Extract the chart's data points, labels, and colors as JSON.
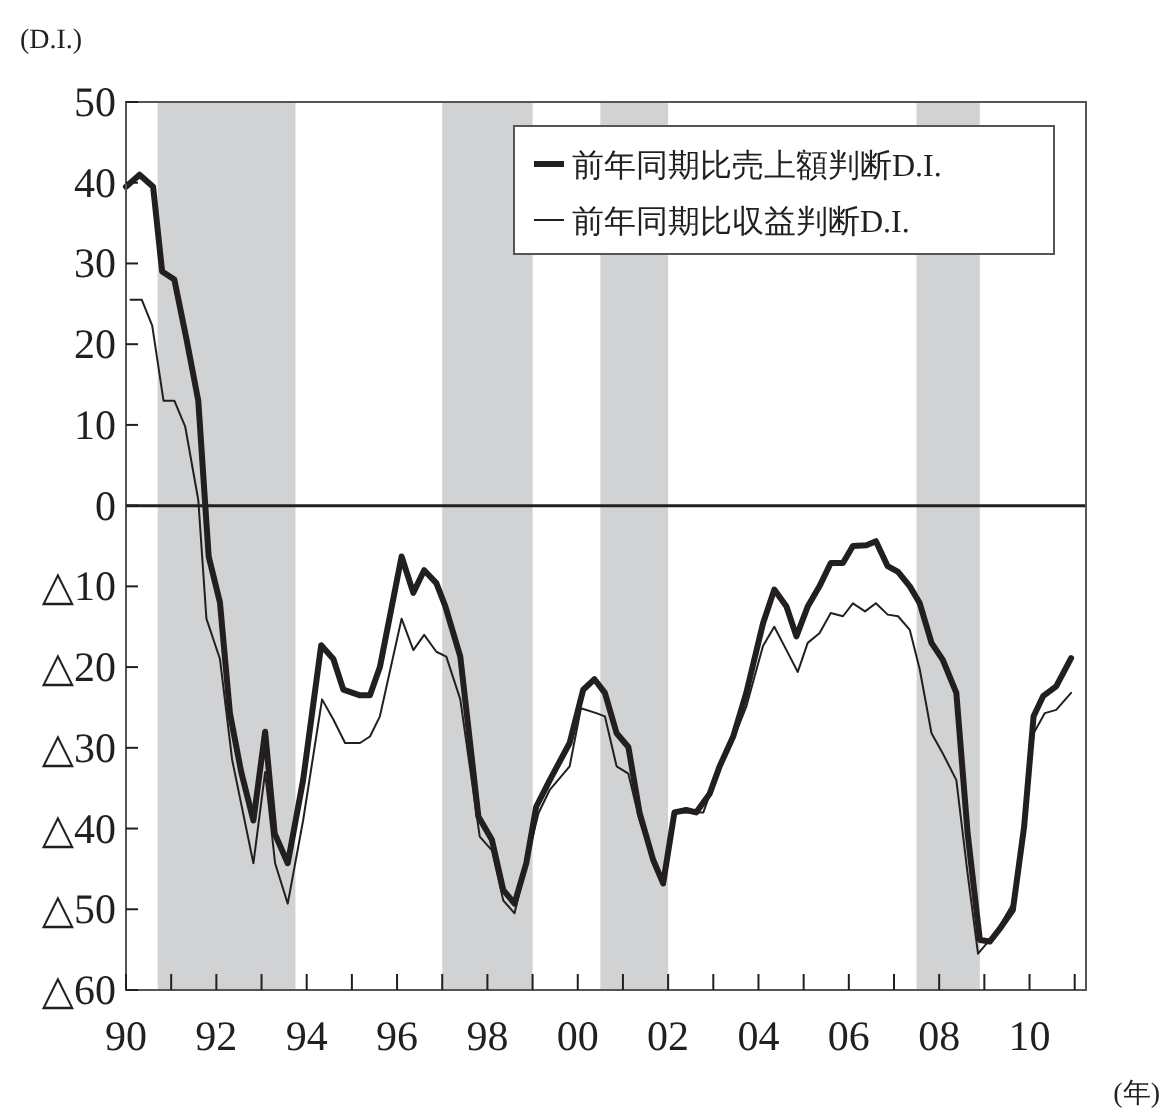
{
  "chart_data": {
    "type": "line",
    "ylabel": "(D.I.)",
    "xlabel": "(年)",
    "xlim": [
      1990,
      2011.25
    ],
    "ylim": [
      -60,
      50
    ],
    "xticks": [
      {
        "value": 1990,
        "label": "90"
      },
      {
        "value": 1991,
        "label": null
      },
      {
        "value": 1992,
        "label": "92"
      },
      {
        "value": 1993,
        "label": null
      },
      {
        "value": 1994,
        "label": "94"
      },
      {
        "value": 1995,
        "label": null
      },
      {
        "value": 1996,
        "label": "96"
      },
      {
        "value": 1997,
        "label": null
      },
      {
        "value": 1998,
        "label": "98"
      },
      {
        "value": 1999,
        "label": null
      },
      {
        "value": 2000,
        "label": "00"
      },
      {
        "value": 2001,
        "label": null
      },
      {
        "value": 2002,
        "label": "02"
      },
      {
        "value": 2003,
        "label": null
      },
      {
        "value": 2004,
        "label": "04"
      },
      {
        "value": 2005,
        "label": null
      },
      {
        "value": 2006,
        "label": "06"
      },
      {
        "value": 2007,
        "label": null
      },
      {
        "value": 2008,
        "label": "08"
      },
      {
        "value": 2009,
        "label": null
      },
      {
        "value": 2010,
        "label": "10"
      },
      {
        "value": 2011,
        "label": null
      }
    ],
    "yticks": [
      50,
      40,
      30,
      20,
      10,
      0,
      {
        "value": -10,
        "label": "△10"
      },
      {
        "value": -20,
        "label": "△20"
      },
      {
        "value": -30,
        "label": "△30"
      },
      {
        "value": -40,
        "label": "△40"
      },
      {
        "value": -50,
        "label": "△50"
      },
      {
        "value": -60,
        "label": "△60"
      }
    ],
    "legend": "top right",
    "bands": [
      {
        "axis": "x",
        "from": 1990.7,
        "to": 1993.75,
        "color": "#d1d2d4"
      },
      {
        "axis": "x",
        "from": 1997.0,
        "to": 1999.0,
        "color": "#d1d2d4"
      },
      {
        "axis": "x",
        "from": 2000.5,
        "to": 2002.0,
        "color": "#d1d2d4"
      },
      {
        "axis": "x",
        "from": 2007.5,
        "to": 2008.9,
        "color": "#d1d2d4"
      }
    ],
    "ref_lines": [
      {
        "axis": "y",
        "value": 0,
        "color": "#231f20"
      }
    ],
    "series": [
      {
        "name": "前年同期比売上額判断D.I.",
        "color": "#231f20",
        "x": [
          1990.0,
          1990.3,
          1990.6,
          1990.8,
          1991.07,
          1991.34,
          1991.6,
          1991.83,
          1992.08,
          1992.3,
          1992.55,
          1992.82,
          1993.08,
          1993.29,
          1993.58,
          1993.92,
          1994.32,
          1994.59,
          1994.81,
          1995.18,
          1995.4,
          1995.62,
          1996.1,
          1996.36,
          1996.6,
          1996.87,
          1997.07,
          1997.4,
          1997.8,
          1998.1,
          1998.35,
          1998.6,
          1998.86,
          1999.08,
          1999.38,
          1999.82,
          2000.12,
          2000.37,
          2000.6,
          2000.86,
          2001.12,
          2001.37,
          2001.67,
          2001.89,
          2002.14,
          2002.4,
          2002.62,
          2002.92,
          2003.14,
          2003.44,
          2003.73,
          2004.1,
          2004.35,
          2004.62,
          2004.84,
          2005.09,
          2005.35,
          2005.6,
          2005.87,
          2006.09,
          2006.39,
          2006.6,
          2006.86,
          2007.09,
          2007.35,
          2007.57,
          2007.83,
          2008.08,
          2008.38,
          2008.63,
          2008.9,
          2009.12,
          2009.37,
          2009.63,
          2009.88,
          2010.09,
          2010.3,
          2010.59,
          2010.92
        ],
        "values": [
          39.5,
          41,
          39.5,
          29,
          28,
          20.6,
          13,
          -6.3,
          -12,
          -25.7,
          -33,
          -39,
          -28,
          -40.6,
          -44.3,
          -34,
          -17.3,
          -19,
          -22.8,
          -23.5,
          -23.5,
          -20,
          -6.3,
          -10.8,
          -8,
          -9.6,
          -12.5,
          -18.7,
          -38.5,
          -41.4,
          -47.6,
          -49.3,
          -44.3,
          -37.3,
          -34,
          -29.4,
          -22.8,
          -21.5,
          -23.2,
          -28.2,
          -29.9,
          -38.1,
          -43.9,
          -46.8,
          -38,
          -37.7,
          -38,
          -35.7,
          -32.3,
          -28.6,
          -23.2,
          -14.6,
          -10.4,
          -12.5,
          -16.2,
          -12.5,
          -10,
          -7.1,
          -7.1,
          -5,
          -4.9,
          -4.4,
          -7.5,
          -8.2,
          -10,
          -12.1,
          -17,
          -19.1,
          -23.2,
          -40.6,
          -53.8,
          -54,
          -52.2,
          -50.1,
          -39.8,
          -26.1,
          -23.6,
          -22.4,
          -18.9
        ]
      },
      {
        "name": "前年同期比収益判断D.I.",
        "color": "#231f20",
        "x": [
          1990.1,
          1990.35,
          1990.58,
          1990.83,
          1991.07,
          1991.31,
          1991.6,
          1991.78,
          1992.08,
          1992.35,
          1992.82,
          1993.08,
          1993.3,
          1993.58,
          1993.92,
          1994.34,
          1994.59,
          1994.85,
          1995.18,
          1995.4,
          1995.62,
          1996.1,
          1996.36,
          1996.6,
          1996.87,
          1997.09,
          1997.4,
          1997.83,
          1998.1,
          1998.35,
          1998.6,
          1998.86,
          1999.13,
          1999.38,
          1999.82,
          2000.07,
          2000.41,
          2000.6,
          2000.86,
          2001.12,
          2001.37,
          2001.67,
          2001.89,
          2002.14,
          2002.4,
          2002.78,
          2003.14,
          2003.44,
          2003.73,
          2004.1,
          2004.35,
          2004.62,
          2004.87,
          2005.09,
          2005.35,
          2005.6,
          2005.87,
          2006.09,
          2006.36,
          2006.6,
          2006.86,
          2007.09,
          2007.35,
          2007.57,
          2007.83,
          2008.08,
          2008.38,
          2008.63,
          2008.86,
          2009.12,
          2009.37,
          2009.63,
          2009.88,
          2010.09,
          2010.34,
          2010.59,
          2010.92
        ],
        "values": [
          25.5,
          25.5,
          22.3,
          13,
          13,
          9.8,
          0.7,
          -14,
          -19,
          -31.5,
          -44.3,
          -33,
          -44.3,
          -49.3,
          -39,
          -24,
          -26.5,
          -29.4,
          -29.4,
          -28.6,
          -26.1,
          -14,
          -17.9,
          -16,
          -18.1,
          -18.7,
          -24,
          -41,
          -42.7,
          -48.9,
          -50.5,
          -44.3,
          -38.1,
          -35.2,
          -32.3,
          -25.1,
          -25.7,
          -26.1,
          -32.3,
          -33.2,
          -39,
          -43.9,
          -46.4,
          -38,
          -38,
          -38,
          -32.3,
          -29,
          -24.9,
          -17.4,
          -15,
          -17.9,
          -20.6,
          -17,
          -15.8,
          -13.3,
          -13.7,
          -12.1,
          -13.1,
          -12.1,
          -13.5,
          -13.7,
          -15.4,
          -20.3,
          -28.2,
          -30.7,
          -34,
          -45.6,
          -55.5,
          -53.8,
          -51.8,
          -49.3,
          -40.6,
          -28.2,
          -25.7,
          -25.3,
          -23.2
        ]
      }
    ]
  }
}
